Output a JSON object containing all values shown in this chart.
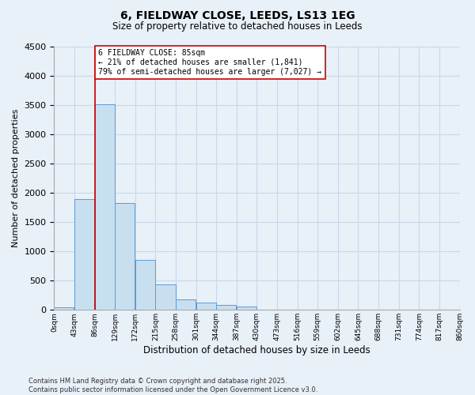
{
  "title_line1": "6, FIELDWAY CLOSE, LEEDS, LS13 1EG",
  "title_line2": "Size of property relative to detached houses in Leeds",
  "xlabel": "Distribution of detached houses by size in Leeds",
  "ylabel": "Number of detached properties",
  "bin_edges": [
    0,
    43,
    86,
    129,
    172,
    215,
    258,
    301,
    344,
    387,
    430,
    473,
    516,
    559,
    602,
    645,
    688,
    731,
    774,
    817,
    860
  ],
  "bar_heights": [
    50,
    1900,
    3520,
    1820,
    860,
    430,
    175,
    125,
    80,
    60,
    10,
    5,
    0,
    0,
    0,
    0,
    0,
    0,
    0,
    0
  ],
  "bar_color": "#c8dff0",
  "bar_edge_color": "#5b9bd5",
  "vline_x": 86,
  "ylim": [
    0,
    4500
  ],
  "yticks": [
    0,
    500,
    1000,
    1500,
    2000,
    2500,
    3000,
    3500,
    4000,
    4500
  ],
  "annotation_text": "6 FIELDWAY CLOSE: 85sqm\n← 21% of detached houses are smaller (1,841)\n79% of semi-detached houses are larger (7,027) →",
  "annotation_box_color": "#ffffff",
  "annotation_box_edge": "#cc0000",
  "grid_color": "#c8d8e8",
  "background_color": "#e8f0f8",
  "footer_line1": "Contains HM Land Registry data © Crown copyright and database right 2025.",
  "footer_line2": "Contains public sector information licensed under the Open Government Licence v3.0.",
  "bin_width": 43
}
